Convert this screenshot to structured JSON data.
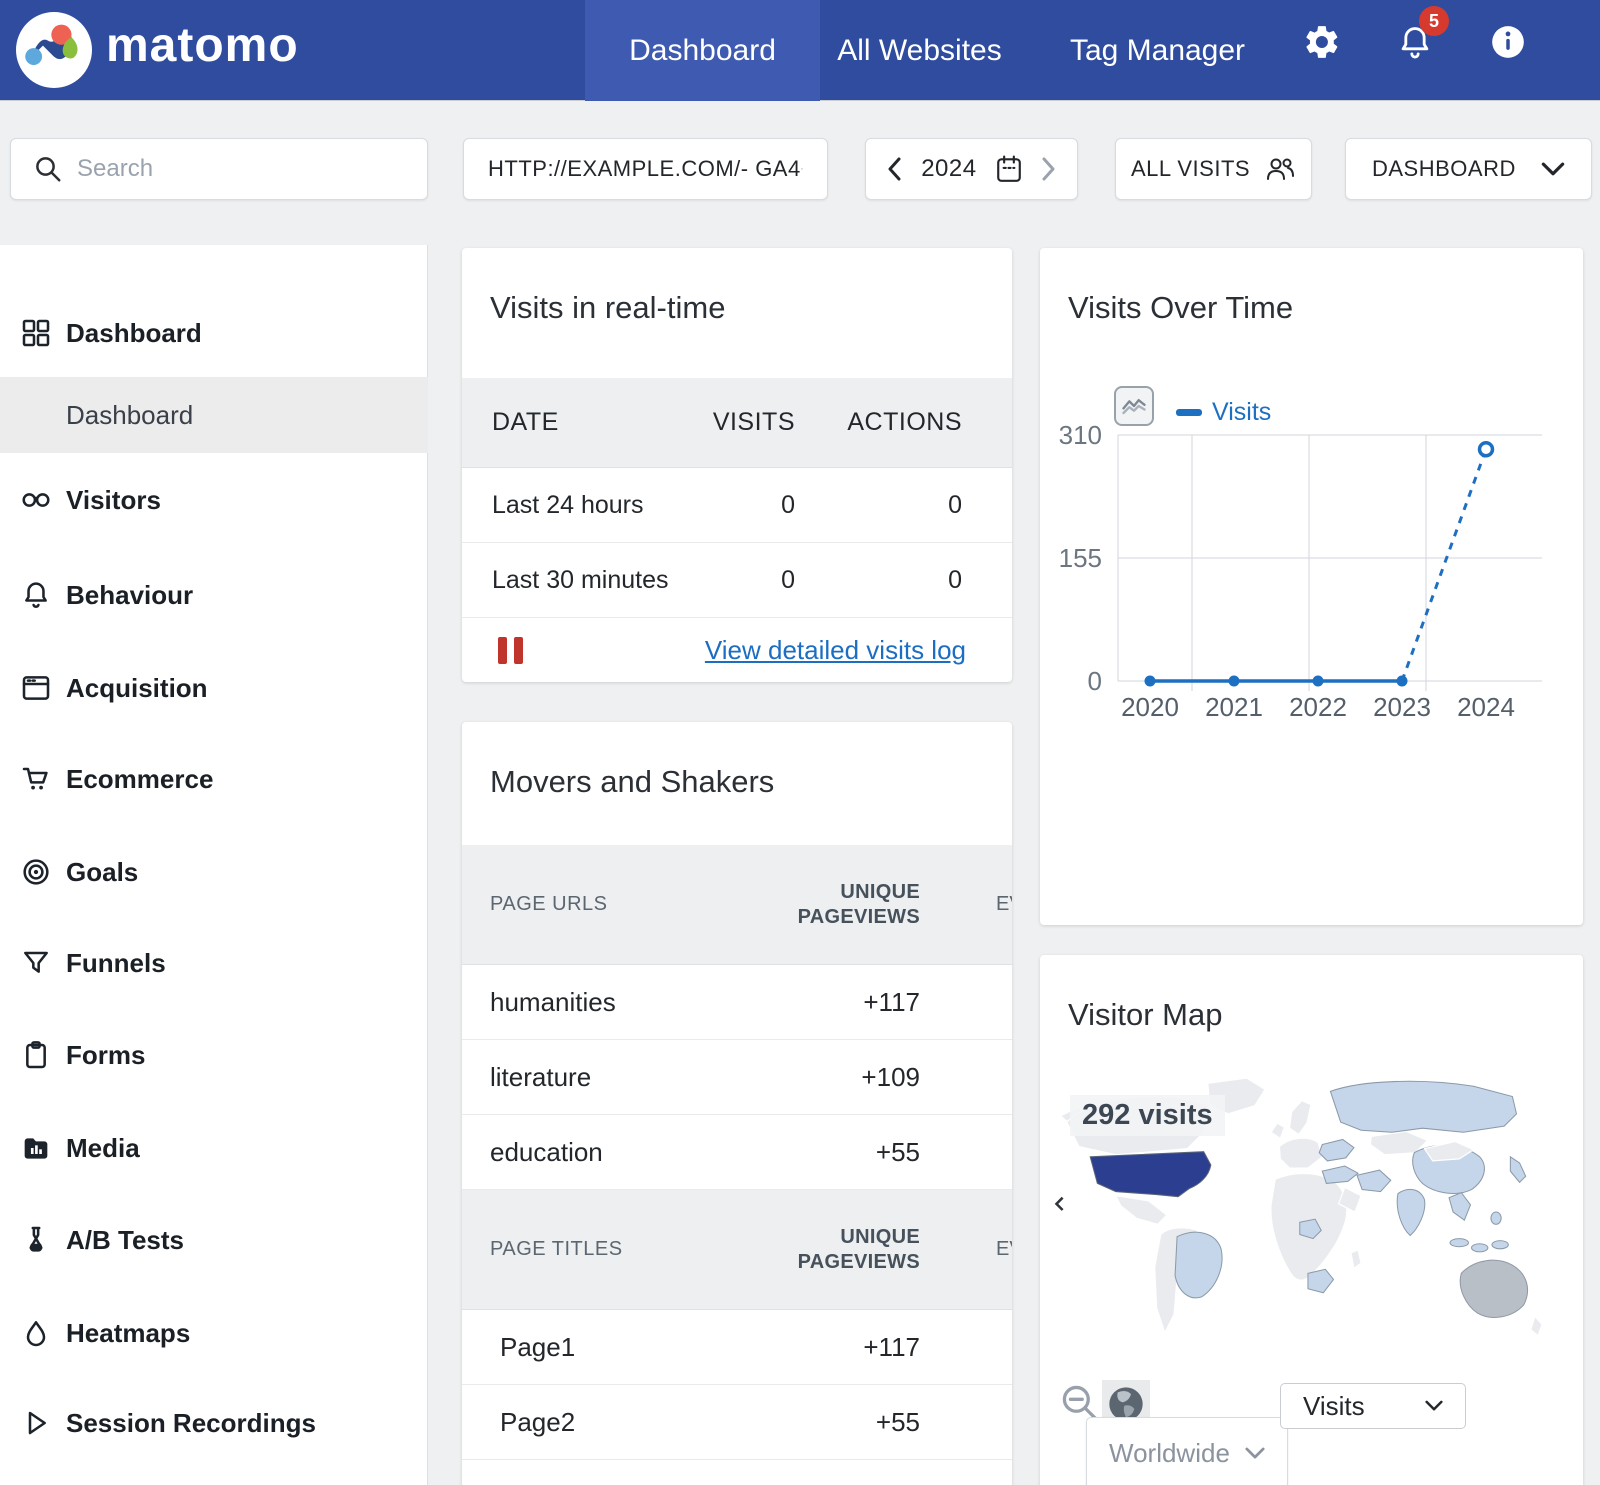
{
  "nav": {
    "brand": "matomo",
    "tabs": [
      {
        "label": "Dashboard",
        "active": true
      },
      {
        "label": "All Websites",
        "active": false
      },
      {
        "label": "Tag Manager",
        "active": false
      }
    ],
    "notification_count": "5"
  },
  "toolbar": {
    "search_placeholder": "Search",
    "site_selector": "HTTP://EXAMPLE.COM/- GA4",
    "period": "2024",
    "segment": "ALL VISITS",
    "layout_selector": "DASHBOARD"
  },
  "sidebar": {
    "items": [
      {
        "label": "Dashboard",
        "icon": "grid"
      },
      {
        "label": "Dashboard",
        "icon": null,
        "sub": true,
        "active": true
      },
      {
        "label": "Visitors",
        "icon": "binoculars"
      },
      {
        "label": "Behaviour",
        "icon": "bell"
      },
      {
        "label": "Acquisition",
        "icon": "browser"
      },
      {
        "label": "Ecommerce",
        "icon": "cart"
      },
      {
        "label": "Goals",
        "icon": "target"
      },
      {
        "label": "Funnels",
        "icon": "funnel"
      },
      {
        "label": "Forms",
        "icon": "clipboard"
      },
      {
        "label": "Media",
        "icon": "media"
      },
      {
        "label": "A/B Tests",
        "icon": "flask"
      },
      {
        "label": "Heatmaps",
        "icon": "droplet"
      },
      {
        "label": "Session Recordings",
        "icon": "play"
      }
    ]
  },
  "widgets": {
    "realtime": {
      "title": "Visits in real-time",
      "columns": [
        "DATE",
        "VISITS",
        "ACTIONS"
      ],
      "rows": [
        {
          "date": "Last 24 hours",
          "visits": "0",
          "actions": "0"
        },
        {
          "date": "Last 30 minutes",
          "visits": "0",
          "actions": "0"
        }
      ],
      "link": "View detailed visits log"
    },
    "visits_over_time": {
      "title": "Visits Over Time",
      "legend": "Visits"
    },
    "movers": {
      "title": "Movers and Shakers",
      "sections": [
        {
          "header": "PAGE URLS",
          "col2": "UNIQUE PAGEVIEWS",
          "col3_clipped": "EV",
          "rows": [
            {
              "name": "humanities",
              "value": "+117"
            },
            {
              "name": "literature",
              "value": "+109"
            },
            {
              "name": "education",
              "value": "+55"
            }
          ]
        },
        {
          "header": "PAGE TITLES",
          "col2": "UNIQUE PAGEVIEWS",
          "col3_clipped": "EV",
          "rows": [
            {
              "name": "Page1",
              "value": "+117"
            },
            {
              "name": "Page2",
              "value": "+55"
            }
          ]
        }
      ]
    },
    "visitor_map": {
      "title": "Visitor Map",
      "tooltip": "292 visits",
      "region_select": "Worldwide",
      "metric_select": "Visits"
    }
  },
  "chart_data": {
    "type": "line",
    "title": "Visits Over Time",
    "x": [
      2020,
      2021,
      2022,
      2023,
      2024
    ],
    "series": [
      {
        "name": "Visits",
        "values": [
          0,
          0,
          0,
          0,
          292
        ]
      }
    ],
    "yticks": [
      310,
      155,
      0
    ],
    "ylim": [
      0,
      310
    ],
    "grid": true,
    "legend_position": "top",
    "line_color": "#1d6fc1",
    "last_segment_dashed": true
  },
  "colors": {
    "navbar": "#2f4c9e",
    "navbar_active_tab": "#3e5bb1",
    "notification_badge": "#d63a2f",
    "link": "#1b6ec2",
    "chart_line": "#1d6fc1",
    "map_top_country": "#2b3e8f",
    "map_visited_country": "#c5d6eb",
    "map_neutral_country": "#e9ebee",
    "map_australia": "#b9bfc7"
  }
}
